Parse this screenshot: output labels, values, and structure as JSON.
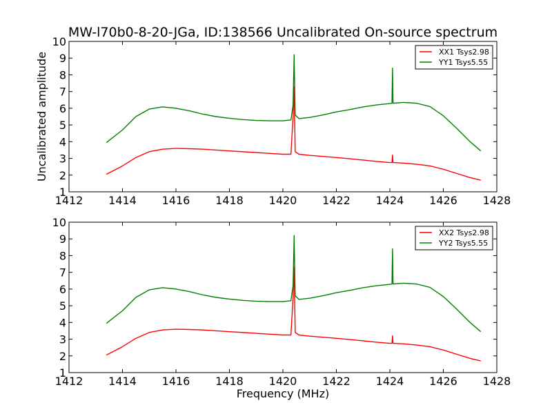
{
  "chart_data": [
    {
      "type": "line",
      "title": "MW-l70b0-8-20-JGa, ID:138566 Uncalibrated On-source spectrum",
      "xlabel": "",
      "ylabel": "Uncalibrated amplitude",
      "xlim": [
        1412,
        1428
      ],
      "ylim": [
        1,
        10
      ],
      "xticks": [
        "1412",
        "1414",
        "1416",
        "1418",
        "1420",
        "1422",
        "1424",
        "1426",
        "1428"
      ],
      "yticks": [
        "1",
        "2",
        "3",
        "4",
        "5",
        "6",
        "7",
        "8",
        "9",
        "10"
      ],
      "legend_position": "top-right",
      "series": [
        {
          "name": "XX1 Tsys2.98",
          "color": "#ff0000",
          "x": [
            1413.4,
            1414.0,
            1414.5,
            1415.0,
            1415.5,
            1416.0,
            1416.5,
            1417.0,
            1417.5,
            1418.0,
            1418.5,
            1419.0,
            1419.5,
            1420.0,
            1420.3,
            1420.38,
            1420.42,
            1420.46,
            1420.6,
            1421.0,
            1421.5,
            1422.0,
            1422.5,
            1423.0,
            1423.5,
            1424.0,
            1424.08,
            1424.1,
            1424.12,
            1424.5,
            1425.0,
            1425.5,
            1426.0,
            1426.5,
            1427.0,
            1427.4
          ],
          "y": [
            2.05,
            2.55,
            3.05,
            3.4,
            3.55,
            3.6,
            3.58,
            3.55,
            3.5,
            3.45,
            3.4,
            3.35,
            3.3,
            3.25,
            3.25,
            5.5,
            7.3,
            3.4,
            3.25,
            3.18,
            3.12,
            3.05,
            2.98,
            2.9,
            2.82,
            2.75,
            2.75,
            3.2,
            2.75,
            2.72,
            2.65,
            2.55,
            2.35,
            2.1,
            1.85,
            1.7
          ]
        },
        {
          "name": "YY1 Tsys5.55",
          "color": "#008000",
          "x": [
            1413.4,
            1414.0,
            1414.5,
            1415.0,
            1415.5,
            1416.0,
            1416.5,
            1417.0,
            1417.5,
            1418.0,
            1418.5,
            1419.0,
            1419.5,
            1420.0,
            1420.3,
            1420.38,
            1420.42,
            1420.46,
            1420.6,
            1421.0,
            1421.5,
            1422.0,
            1422.5,
            1423.0,
            1423.5,
            1424.0,
            1424.08,
            1424.1,
            1424.12,
            1424.5,
            1425.0,
            1425.5,
            1426.0,
            1426.5,
            1427.0,
            1427.4
          ],
          "y": [
            3.95,
            4.7,
            5.5,
            5.95,
            6.08,
            6.0,
            5.85,
            5.65,
            5.5,
            5.4,
            5.32,
            5.27,
            5.25,
            5.25,
            5.3,
            6.2,
            9.2,
            5.6,
            5.38,
            5.45,
            5.6,
            5.78,
            5.92,
            6.08,
            6.2,
            6.28,
            6.3,
            8.4,
            6.3,
            6.35,
            6.3,
            6.1,
            5.55,
            4.8,
            4.0,
            3.45
          ]
        }
      ]
    },
    {
      "type": "line",
      "title": "",
      "xlabel": "Frequency (MHz)",
      "ylabel": "",
      "xlim": [
        1412,
        1428
      ],
      "ylim": [
        1,
        10
      ],
      "xticks": [
        "1412",
        "1414",
        "1416",
        "1418",
        "1420",
        "1422",
        "1424",
        "1426",
        "1428"
      ],
      "yticks": [
        "1",
        "2",
        "3",
        "4",
        "5",
        "6",
        "7",
        "8",
        "9",
        "10"
      ],
      "legend_position": "top-right",
      "series": [
        {
          "name": "XX2 Tsys2.98",
          "color": "#ff0000",
          "x": [
            1413.4,
            1414.0,
            1414.5,
            1415.0,
            1415.5,
            1416.0,
            1416.5,
            1417.0,
            1417.5,
            1418.0,
            1418.5,
            1419.0,
            1419.5,
            1420.0,
            1420.3,
            1420.38,
            1420.42,
            1420.46,
            1420.6,
            1421.0,
            1421.5,
            1422.0,
            1422.5,
            1423.0,
            1423.5,
            1424.0,
            1424.08,
            1424.1,
            1424.12,
            1424.5,
            1425.0,
            1425.5,
            1426.0,
            1426.5,
            1427.0,
            1427.4
          ],
          "y": [
            2.05,
            2.55,
            3.05,
            3.4,
            3.55,
            3.6,
            3.58,
            3.55,
            3.5,
            3.45,
            3.4,
            3.35,
            3.3,
            3.25,
            3.25,
            5.5,
            7.3,
            3.4,
            3.25,
            3.18,
            3.12,
            3.05,
            2.98,
            2.9,
            2.82,
            2.75,
            2.75,
            3.2,
            2.75,
            2.72,
            2.65,
            2.55,
            2.35,
            2.1,
            1.85,
            1.7
          ]
        },
        {
          "name": "YY2 Tsys5.55",
          "color": "#008000",
          "x": [
            1413.4,
            1414.0,
            1414.5,
            1415.0,
            1415.5,
            1416.0,
            1416.5,
            1417.0,
            1417.5,
            1418.0,
            1418.5,
            1419.0,
            1419.5,
            1420.0,
            1420.3,
            1420.38,
            1420.42,
            1420.46,
            1420.6,
            1421.0,
            1421.5,
            1422.0,
            1422.5,
            1423.0,
            1423.5,
            1424.0,
            1424.08,
            1424.1,
            1424.12,
            1424.5,
            1425.0,
            1425.5,
            1426.0,
            1426.5,
            1427.0,
            1427.4
          ],
          "y": [
            3.95,
            4.7,
            5.5,
            5.95,
            6.08,
            6.0,
            5.85,
            5.65,
            5.5,
            5.4,
            5.32,
            5.27,
            5.25,
            5.25,
            5.3,
            6.2,
            9.2,
            5.6,
            5.38,
            5.45,
            5.6,
            5.78,
            5.92,
            6.08,
            6.2,
            6.28,
            6.3,
            8.4,
            6.3,
            6.35,
            6.3,
            6.1,
            5.55,
            4.8,
            4.0,
            3.45
          ]
        }
      ]
    }
  ]
}
